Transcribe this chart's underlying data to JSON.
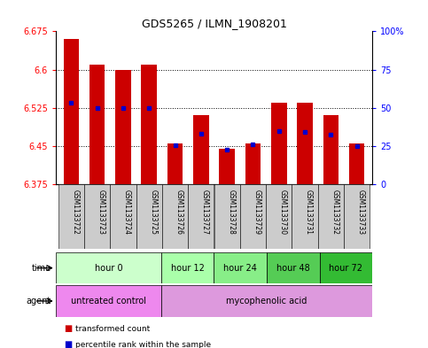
{
  "title": "GDS5265 / ILMN_1908201",
  "samples": [
    "GSM1133722",
    "GSM1133723",
    "GSM1133724",
    "GSM1133725",
    "GSM1133726",
    "GSM1133727",
    "GSM1133728",
    "GSM1133729",
    "GSM1133730",
    "GSM1133731",
    "GSM1133732",
    "GSM1133733"
  ],
  "bar_bottoms": [
    6.375,
    6.375,
    6.375,
    6.375,
    6.375,
    6.375,
    6.375,
    6.375,
    6.375,
    6.375,
    6.375,
    6.375
  ],
  "bar_tops": [
    6.66,
    6.61,
    6.6,
    6.61,
    6.455,
    6.51,
    6.445,
    6.455,
    6.535,
    6.535,
    6.51,
    6.455
  ],
  "percentile_values": [
    6.535,
    6.525,
    6.525,
    6.525,
    6.452,
    6.474,
    6.443,
    6.453,
    6.48,
    6.478,
    6.472,
    6.45
  ],
  "ylim_left": [
    6.375,
    6.675
  ],
  "ylim_right": [
    0,
    100
  ],
  "yticks_left": [
    6.375,
    6.45,
    6.525,
    6.6,
    6.675
  ],
  "yticks_right": [
    0,
    25,
    50,
    75,
    100
  ],
  "ytick_labels_left": [
    "6.375",
    "6.45",
    "6.525",
    "6.6",
    "6.675"
  ],
  "ytick_labels_right": [
    "0",
    "25",
    "50",
    "75",
    "100%"
  ],
  "bar_color": "#cc0000",
  "percentile_color": "#0000cc",
  "time_groups": [
    {
      "label": "hour 0",
      "start": 0,
      "end": 4,
      "color": "#ccffcc"
    },
    {
      "label": "hour 12",
      "start": 4,
      "end": 6,
      "color": "#aaffaa"
    },
    {
      "label": "hour 24",
      "start": 6,
      "end": 8,
      "color": "#88ee88"
    },
    {
      "label": "hour 48",
      "start": 8,
      "end": 10,
      "color": "#55cc55"
    },
    {
      "label": "hour 72",
      "start": 10,
      "end": 12,
      "color": "#33bb33"
    }
  ],
  "agent_groups": [
    {
      "label": "untreated control",
      "start": 0,
      "end": 4,
      "color": "#ee88ee"
    },
    {
      "label": "mycophenolic acid",
      "start": 4,
      "end": 12,
      "color": "#dd99dd"
    }
  ],
  "time_row_label": "time",
  "agent_row_label": "agent",
  "legend_items": [
    {
      "color": "#cc0000",
      "label": "transformed count"
    },
    {
      "color": "#0000cc",
      "label": "percentile rank within the sample"
    }
  ],
  "sample_bg_color": "#cccccc"
}
